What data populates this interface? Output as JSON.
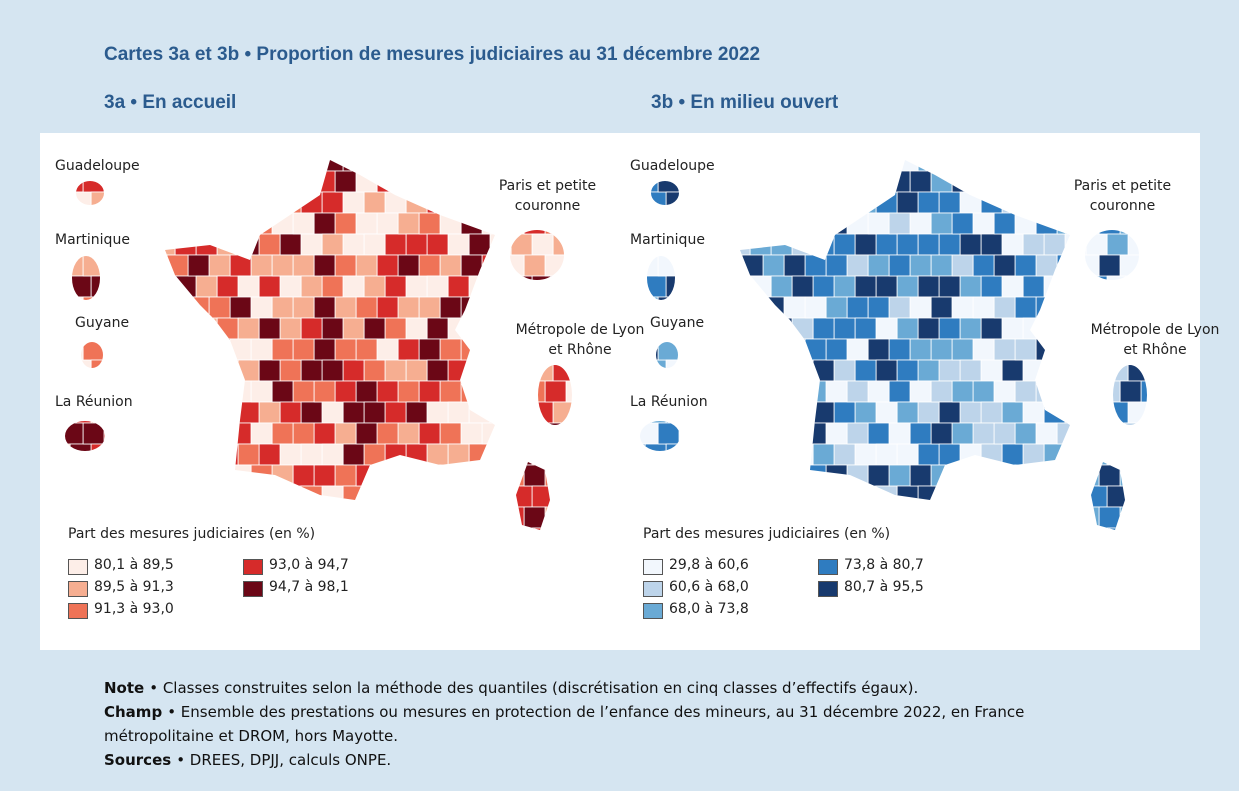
{
  "title": "Cartes 3a et 3b • Proportion de mesures judiciaires au 31 décembre 2022",
  "maps": [
    {
      "title": "3a • En accueil",
      "insets": [
        "Guadeloupe",
        "Martinique",
        "Guyane",
        "La Réunion",
        "Paris et petite couronne",
        "Métropole de Lyon et Rhône"
      ],
      "legend_title": "Part des mesures judiciaires (en %)",
      "legend": [
        {
          "label": "80,1 à 89,5",
          "color": "#fdeee8"
        },
        {
          "label": "89,5 à 91,3",
          "color": "#f6ae91"
        },
        {
          "label": "91,3 à 93,0",
          "color": "#ef7357"
        },
        {
          "label": "93,0 à 94,7",
          "color": "#d62b2a"
        },
        {
          "label": "94,7 à 98,1",
          "color": "#6b0716"
        }
      ]
    },
    {
      "title": "3b • En milieu ouvert",
      "insets": [
        "Guadeloupe",
        "Martinique",
        "Guyane",
        "La Réunion",
        "Paris et petite couronne",
        "Métropole de Lyon et Rhône"
      ],
      "legend_title": "Part des mesures judiciaires (en %)",
      "legend": [
        {
          "label": "29,8 à 60,6",
          "color": "#f2f7fd"
        },
        {
          "label": "60,6 à 68,0",
          "color": "#bdd4ea"
        },
        {
          "label": "68,0 à 73,8",
          "color": "#6aaad5"
        },
        {
          "label": "73,8 à 80,7",
          "color": "#2f7cc0"
        },
        {
          "label": "80,7 à 95,5",
          "color": "#183a6e"
        }
      ]
    }
  ],
  "notes": [
    {
      "label": "Note",
      "text": "• Classes construites selon la méthode des quantiles (discrétisation en cinq classes d’effectifs égaux)."
    },
    {
      "label": "Champ",
      "text": "• Ensemble des prestations ou mesures en protection de l’enfance des mineurs, au 31 décembre 2022, en France métropolitaine et DROM, hors Mayotte."
    },
    {
      "label": "Sources",
      "text": "• DREES, DPJJ, calculs ONPE."
    }
  ]
}
